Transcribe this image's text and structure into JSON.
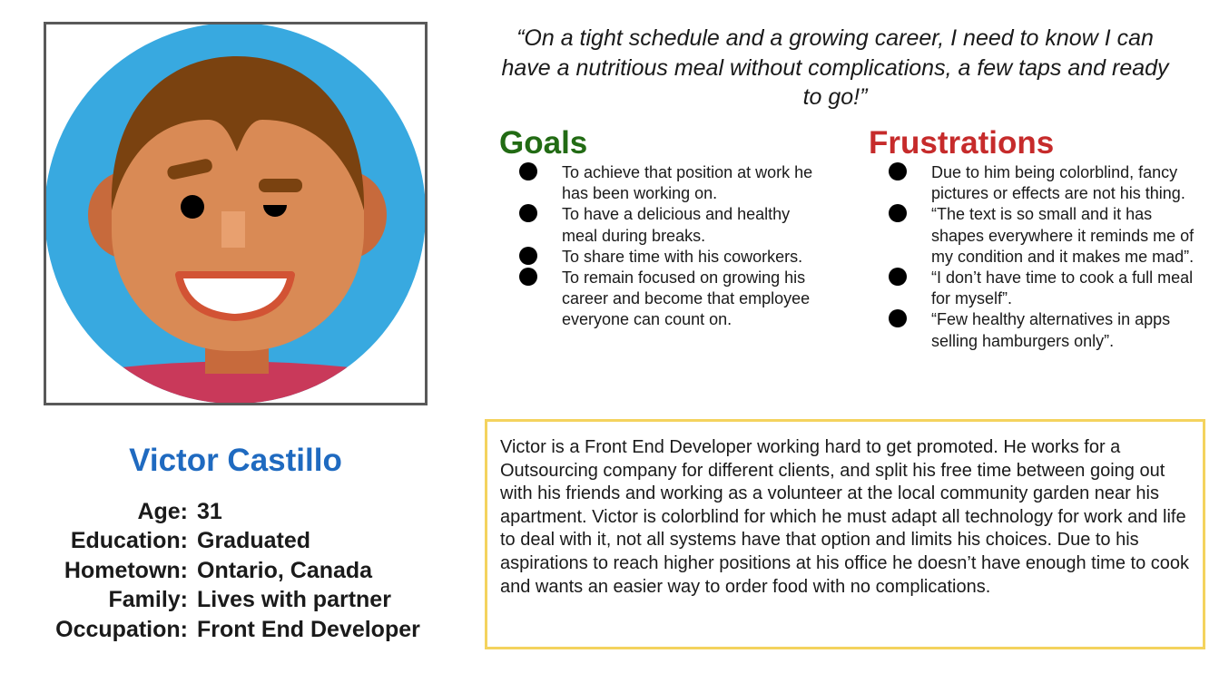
{
  "persona": {
    "name": "Victor Castillo",
    "details": [
      {
        "label": "Age:",
        "value": "31"
      },
      {
        "label": "Education:",
        "value": "Graduated"
      },
      {
        "label": "Hometown:",
        "value": "Ontario, Canada"
      },
      {
        "label": "Family:",
        "value": "Lives with partner"
      },
      {
        "label": "Occupation:",
        "value": "Front End Developer"
      }
    ]
  },
  "quote": "“On a tight schedule and a growing career, I need to know I can have a nutritious meal without complications, a few taps and ready to go!”",
  "goals": {
    "title": "Goals",
    "items": [
      "To achieve that position at work he has been working on.",
      "To have a delicious and healthy meal during breaks.",
      "To share time with his coworkers.",
      "To remain focused on growing his career and become that employee everyone can count on."
    ]
  },
  "frustrations": {
    "title": "Frustrations",
    "items": [
      "Due to him being colorblind, fancy pictures or effects are not his thing.",
      "“The text is so small and it has shapes everywhere it reminds me of my condition and it makes me mad”.",
      "“I don’t have time to cook a full meal for myself”.",
      "“Few healthy alternatives in apps selling hamburgers only”."
    ]
  },
  "bio": "Victor is a Front End Developer working hard to get promoted. He works for a Outsourcing company for different clients, and split his free time between going out with his friends and working as a volunteer at the local community garden near his apartment. Victor is colorblind for which he must adapt all technology for work and life to deal with it, not all systems have that option and limits his choices. Due to his aspirations to reach higher positions at his office he doesn’t have enough time to cook and wants an easier way to order food with no complications.",
  "colors": {
    "name": "#1f6ac0",
    "goals": "#226b14",
    "frustrations": "#c62b2b",
    "bio_border": "#f4d35e",
    "avatar_bg": "#38a9e0"
  },
  "icons": [
    "avatar-illustration",
    "bullet-dot-icon"
  ]
}
